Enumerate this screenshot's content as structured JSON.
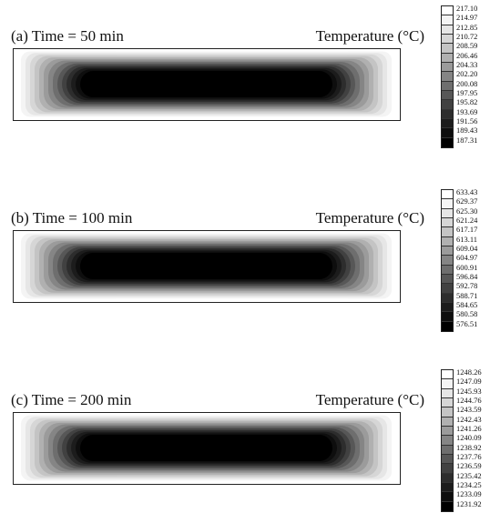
{
  "panels": [
    {
      "title": "(a) Time = 50 min",
      "legend_title": "Temperature (°C)",
      "levels": [
        "217.10",
        "214.97",
        "212.85",
        "210.72",
        "208.59",
        "206.46",
        "204.33",
        "202.20",
        "200.08",
        "197.95",
        "195.82",
        "193.69",
        "191.56",
        "189.43",
        "187.31"
      ]
    },
    {
      "title": "(b) Time = 100 min",
      "legend_title": "Temperature (°C)",
      "levels": [
        "633.43",
        "629.37",
        "625.30",
        "621.24",
        "617.17",
        "613.11",
        "609.04",
        "604.97",
        "600.91",
        "596.84",
        "592.78",
        "588.71",
        "584.65",
        "580.58",
        "576.51"
      ]
    },
    {
      "title": "(c) Time = 200 min",
      "legend_title": "Temperature (°C)",
      "levels": [
        "1248.26",
        "1247.09",
        "1245.93",
        "1244.76",
        "1243.59",
        "1242.43",
        "1241.26",
        "1240.09",
        "1238.92",
        "1237.76",
        "1236.59",
        "1235.42",
        "1234.25",
        "1233.09",
        "1231.92"
      ]
    }
  ],
  "colors": {
    "ramp": [
      "#ffffff",
      "#f4f4f4",
      "#e6e6e6",
      "#d6d6d6",
      "#c4c4c4",
      "#b0b0b0",
      "#9b9b9b",
      "#858585",
      "#6e6e6e",
      "#575757",
      "#414141",
      "#2d2d2d",
      "#1c1c1c",
      "#0e0e0e",
      "#000000"
    ]
  }
}
